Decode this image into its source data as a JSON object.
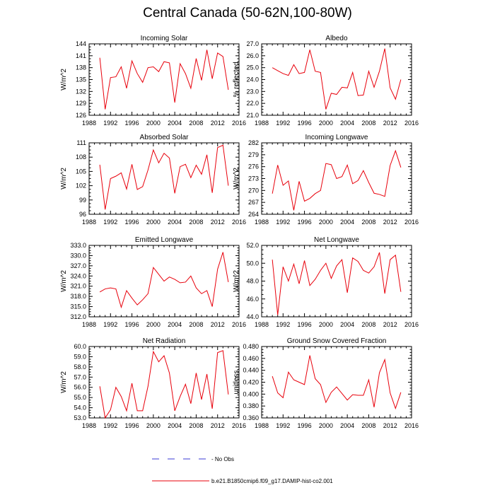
{
  "figure": {
    "title": "Central Canada (50-62N,100-80W)",
    "legend": [
      {
        "label": "- No Obs",
        "style": "dashed",
        "color": "#3b3bd6"
      },
      {
        "label": "b.e21.B1850cmip6.f09_g17.DAMIP-hist-co2.001",
        "style": "solid",
        "color": "#e8000b"
      }
    ],
    "series_color": "#e8000b"
  },
  "chart_data": [
    {
      "type": "line",
      "title": "Incoming Solar",
      "xlabel": "",
      "ylabel": "W/m^2",
      "xlim": [
        1988,
        2016
      ],
      "ylim": [
        126,
        144
      ],
      "xticks": [
        "1988",
        "1992",
        "1996",
        "2000",
        "2004",
        "2008",
        "2012",
        "2016"
      ],
      "yticks": [
        "126",
        "129",
        "132",
        "135",
        "138",
        "141",
        "144"
      ],
      "x": [
        1990,
        1991,
        1992,
        1993,
        1994,
        1995,
        1996,
        1997,
        1998,
        1999,
        2000,
        2001,
        2002,
        2003,
        2004,
        2005,
        2006,
        2007,
        2008,
        2009,
        2010,
        2011,
        2012,
        2013,
        2014
      ],
      "series": [
        {
          "values": [
            140.5,
            127.5,
            135.5,
            135.7,
            138.2,
            132.8,
            139.7,
            136.5,
            134.3,
            138.0,
            138.2,
            137.0,
            139.5,
            139.2,
            129.2,
            139.0,
            136.5,
            132.8,
            140.3,
            134.8,
            142.5,
            135.2,
            141.7,
            140.8,
            132.4
          ]
        }
      ]
    },
    {
      "type": "line",
      "title": "Albedo",
      "xlabel": "",
      "ylabel": "% reflected",
      "xlim": [
        1988,
        2016
      ],
      "ylim": [
        21.0,
        27.0
      ],
      "xticks": [
        "1988",
        "1992",
        "1996",
        "2000",
        "2004",
        "2008",
        "2012",
        "2016"
      ],
      "yticks": [
        "21.0",
        "22.0",
        "23.0",
        "24.0",
        "25.0",
        "26.0",
        "27.0"
      ],
      "x": [
        1990,
        1991,
        1992,
        1993,
        1994,
        1995,
        1996,
        1997,
        1998,
        1999,
        2000,
        2001,
        2002,
        2003,
        2004,
        2005,
        2006,
        2007,
        2008,
        2009,
        2010,
        2011,
        2012,
        2013,
        2014
      ],
      "series": [
        {
          "values": [
            25.0,
            24.75,
            24.5,
            24.35,
            25.25,
            24.5,
            24.6,
            26.5,
            24.7,
            24.6,
            21.5,
            22.85,
            22.75,
            23.35,
            23.3,
            24.6,
            22.65,
            22.7,
            24.7,
            23.35,
            24.7,
            26.6,
            23.3,
            22.35,
            24.0
          ]
        }
      ]
    },
    {
      "type": "line",
      "title": "Absorbed Solar",
      "xlabel": "",
      "ylabel": "W/m^2",
      "xlim": [
        1988,
        2016
      ],
      "ylim": [
        96,
        111
      ],
      "xticks": [
        "1988",
        "1992",
        "1996",
        "2000",
        "2004",
        "2008",
        "2012",
        "2016"
      ],
      "yticks": [
        "96",
        "99",
        "102",
        "105",
        "108",
        "111"
      ],
      "x": [
        1990,
        1991,
        1992,
        1993,
        1994,
        1995,
        1996,
        1997,
        1998,
        1999,
        2000,
        2001,
        2002,
        2003,
        2004,
        2005,
        2006,
        2007,
        2008,
        2009,
        2010,
        2011,
        2012,
        2013,
        2014
      ],
      "series": [
        {
          "values": [
            106.4,
            97.0,
            103.5,
            104.0,
            104.7,
            101.3,
            106.5,
            101.2,
            101.8,
            105.3,
            109.5,
            106.8,
            108.8,
            107.8,
            100.4,
            106.0,
            106.5,
            103.7,
            106.3,
            104.4,
            108.5,
            100.5,
            110.0,
            110.5,
            102.0
          ]
        }
      ]
    },
    {
      "type": "line",
      "title": "Incoming Longwave",
      "xlabel": "",
      "ylabel": "W/m^2",
      "xlim": [
        1988,
        2016
      ],
      "ylim": [
        264,
        282
      ],
      "xticks": [
        "1988",
        "1992",
        "1996",
        "2000",
        "2004",
        "2008",
        "2012",
        "2016"
      ],
      "yticks": [
        "264",
        "267",
        "270",
        "273",
        "276",
        "279",
        "282"
      ],
      "x": [
        1990,
        1991,
        1992,
        1993,
        1994,
        1995,
        1996,
        1997,
        1998,
        1999,
        2000,
        2001,
        2002,
        2003,
        2004,
        2005,
        2006,
        2007,
        2008,
        2009,
        2010,
        2011,
        2012,
        2013,
        2014
      ],
      "series": [
        {
          "values": [
            269.2,
            276.4,
            271.3,
            272.4,
            265.0,
            272.3,
            267.3,
            268.0,
            269.2,
            270.0,
            276.8,
            276.5,
            273.0,
            273.5,
            276.4,
            271.7,
            272.5,
            275.0,
            272.0,
            269.3,
            269.0,
            268.5,
            276.3,
            280.0,
            275.8
          ]
        }
      ]
    },
    {
      "type": "line",
      "title": "Emitted Longwave",
      "xlabel": "",
      "ylabel": "W/m^2",
      "xlim": [
        1988,
        2016
      ],
      "ylim": [
        312.0,
        333.0
      ],
      "xticks": [
        "1988",
        "1992",
        "1996",
        "2000",
        "2004",
        "2008",
        "2012",
        "2016"
      ],
      "yticks": [
        "312.0",
        "315.0",
        "318.0",
        "321.0",
        "324.0",
        "327.0",
        "330.0",
        "333.0"
      ],
      "x": [
        1990,
        1991,
        1992,
        1993,
        1994,
        1995,
        1996,
        1997,
        1998,
        1999,
        2000,
        2001,
        2002,
        2003,
        2004,
        2005,
        2006,
        2007,
        2008,
        2009,
        2010,
        2011,
        2012,
        2013,
        2014
      ],
      "series": [
        {
          "values": [
            319.3,
            320.2,
            320.5,
            320.2,
            314.8,
            319.7,
            317.5,
            315.5,
            317.0,
            318.8,
            326.5,
            324.5,
            322.5,
            323.7,
            323.0,
            322.0,
            322.2,
            324.0,
            320.5,
            318.8,
            319.7,
            315.0,
            326.0,
            331.0,
            322.2
          ]
        }
      ]
    },
    {
      "type": "line",
      "title": "Net Longwave",
      "xlabel": "",
      "ylabel": "W/m^2",
      "xlim": [
        1988,
        2016
      ],
      "ylim": [
        44.0,
        52.0
      ],
      "xticks": [
        "1988",
        "1992",
        "1996",
        "2000",
        "2004",
        "2008",
        "2012",
        "2016"
      ],
      "yticks": [
        "44.0",
        "46.0",
        "48.0",
        "50.0",
        "52.0"
      ],
      "x": [
        1990,
        1991,
        1992,
        1993,
        1994,
        1995,
        1996,
        1997,
        1998,
        1999,
        2000,
        2001,
        2002,
        2003,
        2004,
        2005,
        2006,
        2007,
        2008,
        2009,
        2010,
        2011,
        2012,
        2013,
        2014
      ],
      "series": [
        {
          "values": [
            50.4,
            44.2,
            49.6,
            48.0,
            49.9,
            47.7,
            50.3,
            47.5,
            48.2,
            49.2,
            50.0,
            48.3,
            49.7,
            50.4,
            46.7,
            50.6,
            50.2,
            49.2,
            48.9,
            49.6,
            51.2,
            46.6,
            50.4,
            50.9,
            46.8
          ]
        }
      ]
    },
    {
      "type": "line",
      "title": "Net Radiation",
      "xlabel": "",
      "ylabel": "W/m^2",
      "xlim": [
        1988,
        2016
      ],
      "ylim": [
        53.0,
        60.0
      ],
      "xticks": [
        "1988",
        "1992",
        "1996",
        "2000",
        "2004",
        "2008",
        "2012",
        "2016"
      ],
      "yticks": [
        "53.0",
        "54.0",
        "55.0",
        "56.0",
        "57.0",
        "58.0",
        "59.0",
        "60.0"
      ],
      "x": [
        1990,
        1991,
        1992,
        1993,
        1994,
        1995,
        1996,
        1997,
        1998,
        1999,
        2000,
        2001,
        2002,
        2003,
        2004,
        2005,
        2006,
        2007,
        2008,
        2009,
        2010,
        2011,
        2012,
        2013,
        2014
      ],
      "series": [
        {
          "values": [
            56.1,
            53.0,
            53.8,
            56.0,
            55.1,
            53.7,
            56.4,
            53.7,
            53.7,
            56.1,
            59.5,
            58.5,
            59.1,
            57.4,
            53.7,
            55.1,
            56.3,
            54.4,
            57.4,
            54.8,
            57.3,
            53.9,
            59.4,
            59.6,
            55.3
          ]
        }
      ]
    },
    {
      "type": "line",
      "title": "Ground Snow Covered Fraction",
      "xlabel": "",
      "ylabel": "unitless",
      "xlim": [
        1988,
        2016
      ],
      "ylim": [
        0.36,
        0.48
      ],
      "xticks": [
        "1988",
        "1992",
        "1996",
        "2000",
        "2004",
        "2008",
        "2012",
        "2016"
      ],
      "yticks": [
        "0.360",
        "0.380",
        "0.400",
        "0.420",
        "0.440",
        "0.460",
        "0.480"
      ],
      "x": [
        1990,
        1991,
        1992,
        1993,
        1994,
        1995,
        1996,
        1997,
        1998,
        1999,
        2000,
        2001,
        2002,
        2003,
        2004,
        2005,
        2006,
        2007,
        2008,
        2009,
        2010,
        2011,
        2012,
        2013,
        2014
      ],
      "series": [
        {
          "values": [
            0.43,
            0.402,
            0.394,
            0.437,
            0.424,
            0.42,
            0.416,
            0.465,
            0.426,
            0.416,
            0.386,
            0.403,
            0.412,
            0.401,
            0.39,
            0.399,
            0.398,
            0.398,
            0.424,
            0.378,
            0.436,
            0.458,
            0.402,
            0.376,
            0.403
          ]
        }
      ]
    }
  ]
}
